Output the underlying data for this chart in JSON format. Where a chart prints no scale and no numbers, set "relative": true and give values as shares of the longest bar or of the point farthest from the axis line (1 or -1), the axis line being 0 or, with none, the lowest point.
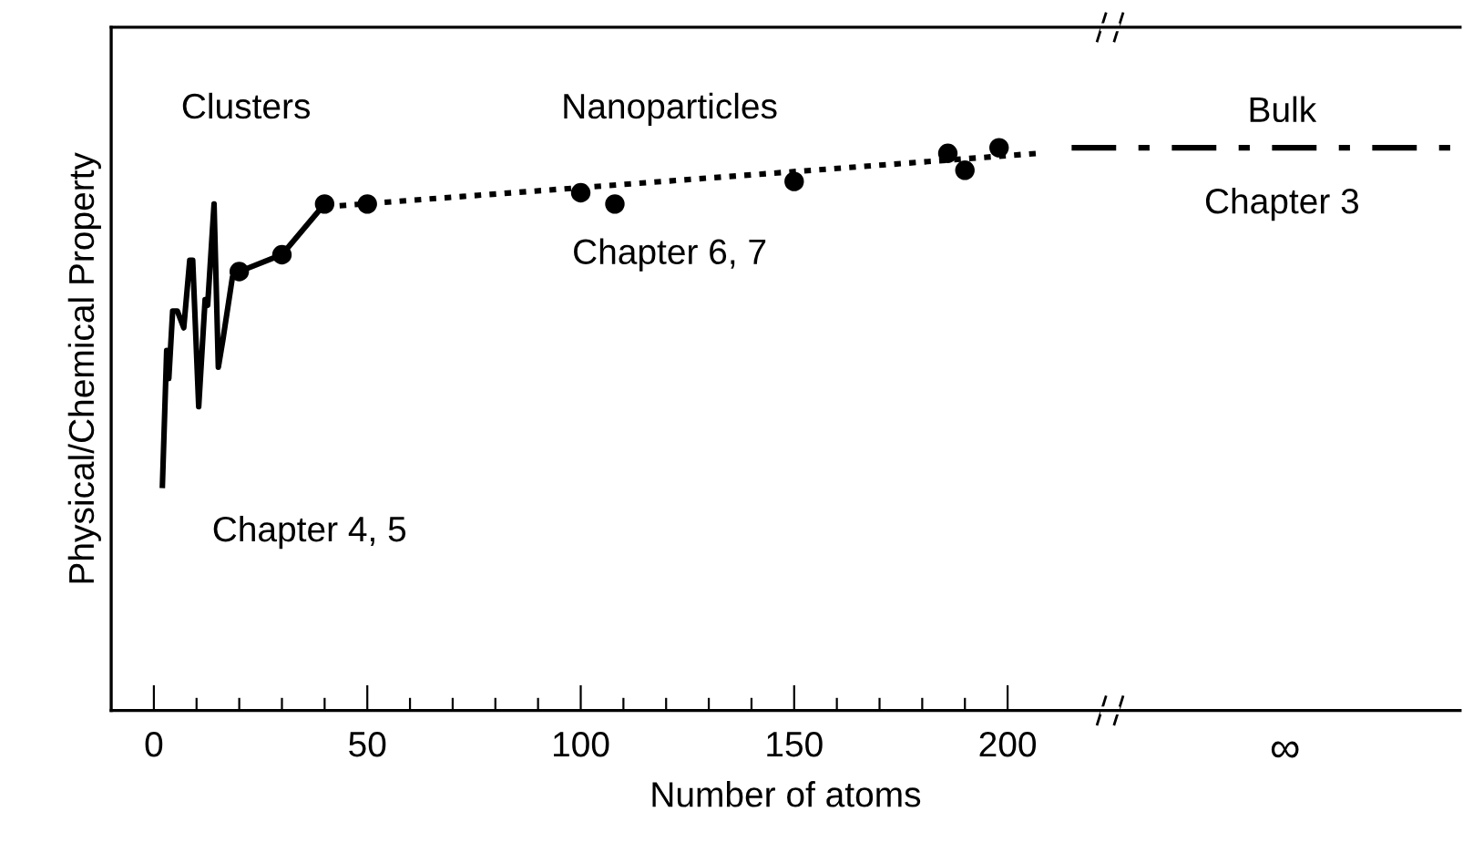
{
  "chart_data": {
    "type": "line",
    "relative": true,
    "xlabel": "Number of atoms",
    "ylabel": "Physical/Chemical Property",
    "annotations": [
      "Clusters",
      "Nanoparticles",
      "Bulk",
      "Chapter 3",
      "Chapter 6, 7",
      "Chapter 4, 5"
    ],
    "xlim": [
      -10,
      306
    ],
    "xticks": [
      0,
      {
        "value": 10,
        "label": null
      },
      {
        "value": 20,
        "label": null
      },
      {
        "value": 30,
        "label": null
      },
      {
        "value": 40,
        "label": null
      },
      50,
      {
        "value": 60,
        "label": null
      },
      {
        "value": 70,
        "label": null
      },
      {
        "value": 80,
        "label": null
      },
      {
        "value": 90,
        "label": null
      },
      100,
      {
        "value": 110,
        "label": null
      },
      {
        "value": 120,
        "label": null
      },
      {
        "value": 130,
        "label": null
      },
      {
        "value": 140,
        "label": null
      },
      150,
      {
        "value": 160,
        "label": null
      },
      {
        "value": 170,
        "label": null
      },
      {
        "value": 180,
        "label": null
      },
      {
        "value": 190,
        "label": null
      },
      200,
      {
        "value": 265,
        "label": "∞"
      }
    ],
    "grid": false,
    "series": [
      {
        "color": "#000000",
        "marker": "none",
        "line_style": "solid",
        "x": [
          2,
          3,
          3.5,
          4.4,
          5.5,
          7,
          8.4,
          9.1,
          10.5,
          12,
          12.6,
          14.1,
          15.1,
          16.2,
          18.4,
          20,
          30,
          40
        ],
        "values": [
          0.4,
          0.64,
          0.59,
          0.71,
          0.71,
          0.68,
          0.8,
          0.8,
          0.54,
          0.73,
          0.72,
          0.9,
          0.61,
          0.66,
          0.77,
          0.78,
          0.81,
          0.9
        ]
      },
      {
        "type": "scatter",
        "color": "#000000",
        "marker": "circle",
        "x": [
          20,
          30,
          40,
          50,
          100,
          108,
          150,
          186,
          190,
          198
        ],
        "values": [
          0.78,
          0.81,
          0.9,
          0.9,
          0.92,
          0.9,
          0.94,
          0.99,
          0.96,
          1.0
        ]
      },
      {
        "color": "#000000",
        "marker": "none",
        "line_style": "dotted",
        "x": [
          40,
          207
        ],
        "values": [
          0.895,
          0.99
        ]
      },
      {
        "color": "#000000",
        "marker": "none",
        "line_style": "dashed",
        "x": [
          215,
          306
        ],
        "values": [
          1.0,
          1.0
        ]
      }
    ]
  }
}
